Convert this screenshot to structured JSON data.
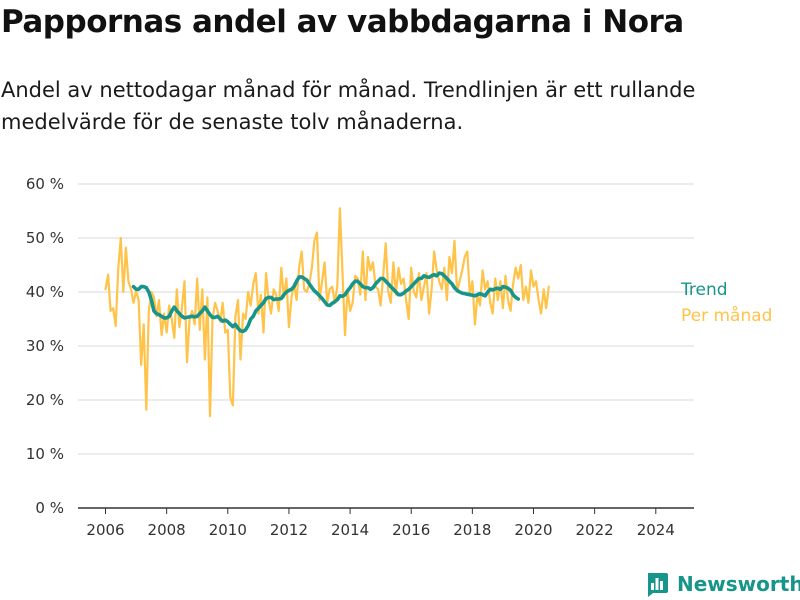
{
  "title": "Pappornas andel av vabbdagarna i Nora",
  "subtitle": "Andel av nettodagar månad för månad. Trendlinjen är ett rullande medelvärde för de senaste tolv månaderna.",
  "brand": {
    "name": "Newsworthy"
  },
  "colors": {
    "trend": "#17958a",
    "monthly": "#ffc34a",
    "grid": "#d9d9d9",
    "axis": "#333333"
  },
  "chart_data": {
    "type": "line",
    "x_ticks": [
      2006,
      2008,
      2010,
      2012,
      2014,
      2016,
      2018,
      2020,
      2022,
      2024
    ],
    "y_ticks": [
      0,
      10,
      20,
      30,
      40,
      50,
      60
    ],
    "y_tick_labels": [
      "0 %",
      "10 %",
      "20 %",
      "30 %",
      "40 %",
      "50 %",
      "60 %"
    ],
    "xlim": [
      2005.1,
      2025.25
    ],
    "ylim": [
      0,
      60
    ],
    "grid": true,
    "legend": "right, at line ends",
    "series": [
      {
        "name": "Per månad",
        "color": "#ffc34a",
        "start": 2006.0,
        "step": 0.083333,
        "values": [
          40.5,
          43.2,
          36.5,
          37.0,
          33.7,
          44.5,
          50.0,
          40.0,
          48.2,
          42.0,
          40.5,
          38.0,
          40.2,
          38.5,
          26.5,
          34.0,
          18.2,
          36.5,
          40.0,
          39.0,
          35.5,
          38.5,
          32.0,
          36.0,
          32.5,
          37.5,
          35.0,
          31.5,
          40.5,
          33.5,
          37.0,
          42.0,
          27.0,
          35.0,
          36.5,
          34.0,
          42.5,
          33.0,
          40.5,
          27.5,
          39.0,
          17.0,
          35.0,
          38.0,
          36.5,
          34.5,
          38.0,
          32.5,
          33.0,
          20.5,
          19.0,
          35.5,
          38.5,
          27.5,
          36.0,
          35.0,
          40.0,
          37.5,
          41.5,
          43.5,
          36.0,
          39.5,
          32.5,
          43.5,
          38.5,
          36.0,
          40.5,
          39.5,
          36.5,
          44.5,
          39.0,
          42.5,
          33.5,
          39.0,
          41.5,
          38.5,
          44.5,
          47.5,
          40.5,
          40.0,
          41.5,
          44.5,
          49.5,
          51.0,
          38.5,
          42.0,
          45.5,
          38.0,
          40.5,
          41.0,
          38.0,
          41.0,
          55.5,
          44.0,
          32.0,
          40.5,
          36.5,
          38.0,
          43.0,
          42.5,
          39.5,
          47.5,
          38.5,
          46.5,
          44.0,
          45.5,
          41.0,
          40.5,
          37.5,
          43.0,
          49.0,
          40.0,
          38.0,
          45.5,
          39.5,
          44.5,
          41.5,
          42.5,
          38.5,
          35.0,
          44.5,
          40.0,
          39.0,
          43.5,
          38.5,
          41.0,
          43.5,
          36.0,
          40.5,
          47.5,
          44.0,
          42.0,
          40.5,
          44.5,
          38.5,
          46.5,
          43.5,
          49.5,
          40.0,
          42.0,
          44.0,
          46.5,
          47.5,
          39.5,
          42.0,
          34.0,
          39.5,
          37.5,
          44.0,
          40.5,
          42.0,
          38.0,
          36.0,
          42.5,
          38.5,
          42.0,
          37.0,
          43.0,
          38.5,
          36.5,
          41.5,
          44.5,
          42.5,
          45.0,
          38.5,
          41.0,
          38.0,
          44.0,
          41.0,
          42.0,
          38.5,
          36.0,
          40.5,
          37.0,
          41.0
        ]
      },
      {
        "name": "Trend",
        "color": "#17958a",
        "start": 2006.917,
        "step": 0.083333,
        "values": [
          41.0,
          40.5,
          40.5,
          41.0,
          41.0,
          40.8,
          40.0,
          38.5,
          36.5,
          36.0,
          35.8,
          35.5,
          35.2,
          35.2,
          35.5,
          36.5,
          37.2,
          36.5,
          36.0,
          35.5,
          35.2,
          35.3,
          35.4,
          35.5,
          35.4,
          35.5,
          36.0,
          36.5,
          37.2,
          36.5,
          35.8,
          35.3,
          35.3,
          35.5,
          35.0,
          34.6,
          34.8,
          34.5,
          34.0,
          33.6,
          34.0,
          33.3,
          32.8,
          32.7,
          33.0,
          33.8,
          35.0,
          35.5,
          36.5,
          37.0,
          37.5,
          38.0,
          38.8,
          39.0,
          39.0,
          38.6,
          38.7,
          38.7,
          38.8,
          39.5,
          40.0,
          40.3,
          40.5,
          41.0,
          42.0,
          42.8,
          42.8,
          42.5,
          42.2,
          41.5,
          40.8,
          40.2,
          39.8,
          39.3,
          38.8,
          38.2,
          37.6,
          37.5,
          37.9,
          38.2,
          38.6,
          39.3,
          39.2,
          39.5,
          40.2,
          40.8,
          41.5,
          42.0,
          42.0,
          41.5,
          41.0,
          40.8,
          40.8,
          40.5,
          40.8,
          41.5,
          42.0,
          42.5,
          42.5,
          42.0,
          41.5,
          41.0,
          40.5,
          40.0,
          39.5,
          39.5,
          39.8,
          40.2,
          40.5,
          41.0,
          41.5,
          42.0,
          42.5,
          42.5,
          43.0,
          42.8,
          42.7,
          43.0,
          43.2,
          43.0,
          43.5,
          43.4,
          43.0,
          42.5,
          42.0,
          41.5,
          40.8,
          40.3,
          40.0,
          39.8,
          39.7,
          39.6,
          39.5,
          39.4,
          39.3,
          39.5,
          39.7,
          39.5,
          39.3,
          40.0,
          40.5,
          40.4,
          40.6,
          40.7,
          40.5,
          41.0,
          40.9,
          40.7,
          40.3,
          39.5,
          39.0,
          38.7
        ]
      }
    ]
  }
}
